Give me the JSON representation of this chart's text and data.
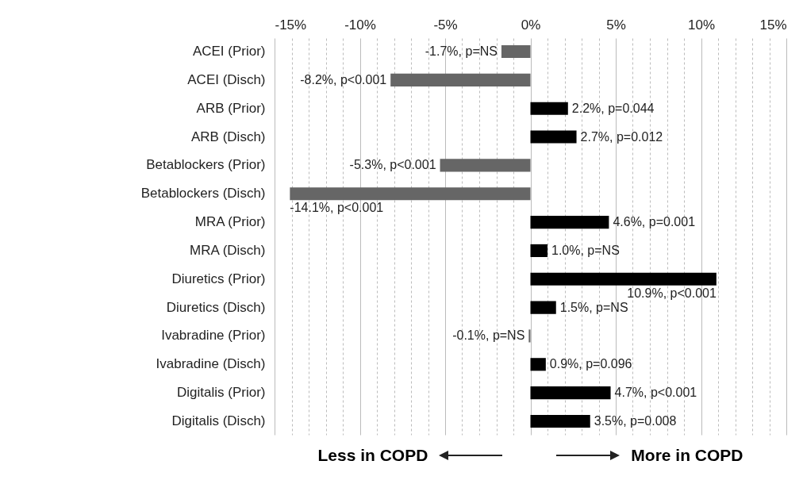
{
  "chart_data": {
    "type": "bar",
    "orientation": "horizontal",
    "categories": [
      "ACEI (Prior)",
      "ACEI (Disch)",
      "ARB (Prior)",
      "ARB (Disch)",
      "Betablockers (Prior)",
      "Betablockers (Disch)",
      "MRA (Prior)",
      "MRA (Disch)",
      "Diuretics (Prior)",
      "Diuretics (Disch)",
      "Ivabradine (Prior)",
      "Ivabradine (Disch)",
      "Digitalis (Prior)",
      "Digitalis (Disch)"
    ],
    "values": [
      -1.7,
      -8.2,
      2.2,
      2.7,
      -5.3,
      -14.1,
      4.6,
      1.0,
      10.9,
      1.5,
      -0.1,
      0.9,
      4.7,
      3.5
    ],
    "value_labels": [
      "-1.7%, p=NS",
      "-8.2%, p<0.001",
      "2.2%, p=0.044",
      "2.7%, p=0.012",
      "-5.3%, p<0.001",
      "-14.1%, p<0.001",
      "4.6%, p=0.001",
      "1.0%, p=NS",
      "10.9%, p<0.001",
      "1.5%, p=NS",
      "-0.1%, p=NS",
      "0.9%, p=0.096",
      "4.7%, p<0.001",
      "3.5%, p=0.008"
    ],
    "colors": [
      "#666666",
      "#666666",
      "#000000",
      "#000000",
      "#666666",
      "#666666",
      "#000000",
      "#000000",
      "#000000",
      "#000000",
      "#666666",
      "#000000",
      "#000000",
      "#000000"
    ],
    "xlim": [
      -15,
      15
    ],
    "xticks": [
      {
        "value": -15,
        "label": "-15%"
      },
      {
        "value": -14,
        "label": null
      },
      {
        "value": -13,
        "label": null
      },
      {
        "value": -12,
        "label": null
      },
      {
        "value": -11,
        "label": null
      },
      {
        "value": -10,
        "label": "-10%"
      },
      {
        "value": -9,
        "label": null
      },
      {
        "value": -8,
        "label": null
      },
      {
        "value": -7,
        "label": null
      },
      {
        "value": -6,
        "label": null
      },
      {
        "value": -5,
        "label": "-5%"
      },
      {
        "value": -4,
        "label": null
      },
      {
        "value": -3,
        "label": null
      },
      {
        "value": -2,
        "label": null
      },
      {
        "value": -1,
        "label": null
      },
      {
        "value": 0,
        "label": "0%"
      },
      {
        "value": 1,
        "label": null
      },
      {
        "value": 2,
        "label": null
      },
      {
        "value": 3,
        "label": null
      },
      {
        "value": 4,
        "label": null
      },
      {
        "value": 5,
        "label": "5%"
      },
      {
        "value": 6,
        "label": null
      },
      {
        "value": 7,
        "label": null
      },
      {
        "value": 8,
        "label": null
      },
      {
        "value": 9,
        "label": null
      },
      {
        "value": 10,
        "label": "10%"
      },
      {
        "value": 11,
        "label": null
      },
      {
        "value": 12,
        "label": null
      },
      {
        "value": 13,
        "label": null
      },
      {
        "value": 14,
        "label": null
      },
      {
        "value": 15,
        "label": "15%"
      }
    ],
    "grid": "x",
    "annotations": [
      "Less in COPD",
      "More in COPD"
    ]
  }
}
